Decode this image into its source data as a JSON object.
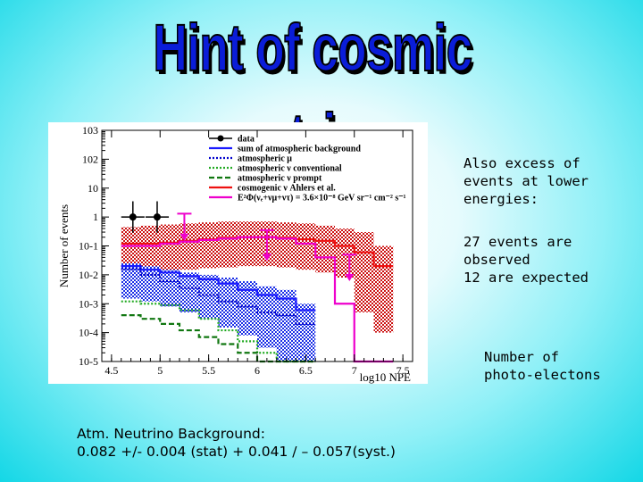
{
  "slide": {
    "title": "Hint of cosmic neutrinos",
    "note_excess": "Also excess of\nevents at lower\nenergies:",
    "note_counts": "27 events are\nobserved\n12 are expected",
    "note_npe": "Number of\nphoto-electons",
    "background_line1": "Atm. Neutrino Background:",
    "background_line2": "0.082 +/- 0.004 (stat) + 0.041 / – 0.057(syst.)"
  },
  "colors": {
    "title": "#0a1dd8",
    "data": "#000000",
    "atm_sum": "#1a1aff",
    "atm_mu": "#0000cc",
    "atm_conv": "#22aa22",
    "atm_prompt": "#117711",
    "cosmogenic": "#ee1111",
    "e2_flux": "#ee00cc",
    "cosmogenic_band": "#cc1111",
    "atm_band": "#1a2ee6"
  },
  "chart_data": {
    "type": "histogram",
    "xlabel": "log10 NPE",
    "ylabel": "Number of events",
    "xlim": [
      4.4,
      7.6
    ],
    "ylim": [
      1e-05,
      1000
    ],
    "log_y": true,
    "x_ticks": [
      "4.5",
      "5",
      "5.5",
      "6",
      "6.5",
      "7",
      "7.5"
    ],
    "y_ticks": [
      "10^-5",
      "10^-4",
      "10^-3",
      "10^-2",
      "10^-1",
      "1",
      "10",
      "10^2",
      "10^3"
    ],
    "legend": [
      {
        "label": "data",
        "style": "marker"
      },
      {
        "label": "sum of atmospheric background",
        "style": "solid",
        "color_key": "atm_sum"
      },
      {
        "label": "atmospheric μ",
        "style": "dotted",
        "color_key": "atm_mu"
      },
      {
        "label": "atmospheric ν conventional",
        "style": "dotted",
        "color_key": "atm_conv"
      },
      {
        "label": "atmospheric ν prompt",
        "style": "dashed",
        "color_key": "atm_prompt"
      },
      {
        "label": "cosmogenic ν Ahlers et al.",
        "style": "solid",
        "color_key": "cosmogenic"
      },
      {
        "label": "E²Φ(νₑ+νμ+ντ) = 3.6×10⁻⁸ GeV sr⁻¹ cm⁻² s⁻¹",
        "style": "solid",
        "color_key": "e2_flux"
      }
    ],
    "legend_position": "top-right",
    "data_points": [
      {
        "x": 4.72,
        "y": 1.0,
        "xerr": 0.12
      },
      {
        "x": 4.97,
        "y": 1.0,
        "xerr": 0.12
      }
    ],
    "upper_limits": [
      {
        "x": 5.25,
        "y": 1.3,
        "y_to": 0.15
      },
      {
        "x": 6.1,
        "y": 0.35,
        "y_to": 0.03
      },
      {
        "x": 6.95,
        "y": 0.05,
        "y_to": 0.006
      }
    ],
    "bin_edges": [
      4.6,
      4.8,
      5.0,
      5.2,
      5.4,
      5.6,
      5.8,
      6.0,
      6.2,
      6.4,
      6.6,
      6.8,
      7.0,
      7.2,
      7.4
    ],
    "series": [
      {
        "name": "cosmogenic ν Ahlers et al.",
        "color_key": "cosmogenic",
        "style": "solid",
        "values": [
          0.12,
          0.12,
          0.13,
          0.15,
          0.17,
          0.19,
          0.2,
          0.2,
          0.19,
          0.17,
          0.15,
          0.1,
          0.06,
          0.02
        ],
        "band_low": [
          0.012,
          0.012,
          0.013,
          0.015,
          0.017,
          0.018,
          0.02,
          0.02,
          0.018,
          0.015,
          0.012,
          0.008,
          0.0005,
          0.0001
        ],
        "band_high": [
          0.45,
          0.5,
          0.55,
          0.6,
          0.65,
          0.7,
          0.7,
          0.7,
          0.65,
          0.6,
          0.5,
          0.4,
          0.3,
          0.1
        ]
      },
      {
        "name": "sum of atmospheric background",
        "color_key": "atm_sum",
        "style": "solid",
        "values": [
          0.02,
          0.015,
          0.012,
          0.009,
          0.007,
          0.005,
          0.003,
          0.002,
          0.0015,
          0.0006
        ],
        "band_low": [
          0.0015,
          0.0012,
          0.0008,
          0.0005,
          0.0003,
          0.00015,
          8e-05,
          3e-05,
          1e-05,
          1e-05
        ],
        "band_high": [
          0.025,
          0.02,
          0.015,
          0.012,
          0.01,
          0.008,
          0.006,
          0.004,
          0.003,
          0.001
        ]
      },
      {
        "name": "atmospheric μ",
        "color_key": "atm_mu",
        "style": "dotted",
        "values": [
          0.016,
          0.01,
          0.006,
          0.0035,
          0.002,
          0.0012,
          0.0008,
          0.0005,
          0.0004,
          0.0002
        ]
      },
      {
        "name": "atmospheric ν conventional",
        "color_key": "atm_conv",
        "style": "dotted",
        "values": [
          0.0012,
          0.001,
          0.0009,
          0.0006,
          0.0003,
          0.00012,
          5e-05,
          2e-05,
          1e-05,
          1e-05
        ]
      },
      {
        "name": "atmospheric ν prompt",
        "color_key": "atm_prompt",
        "style": "dashed",
        "values": [
          0.0004,
          0.0003,
          0.0002,
          0.00012,
          7e-05,
          4e-05,
          2e-05,
          1e-05,
          1e-05,
          1e-05
        ]
      },
      {
        "name": "E²Φ = 3.6×10⁻⁸",
        "color_key": "e2_flux",
        "style": "solid",
        "values": [
          0.1,
          0.1,
          0.12,
          0.14,
          0.16,
          0.18,
          0.2,
          0.2,
          0.18,
          0.12,
          0.04,
          0.001,
          1e-05,
          1e-05
        ]
      }
    ]
  }
}
